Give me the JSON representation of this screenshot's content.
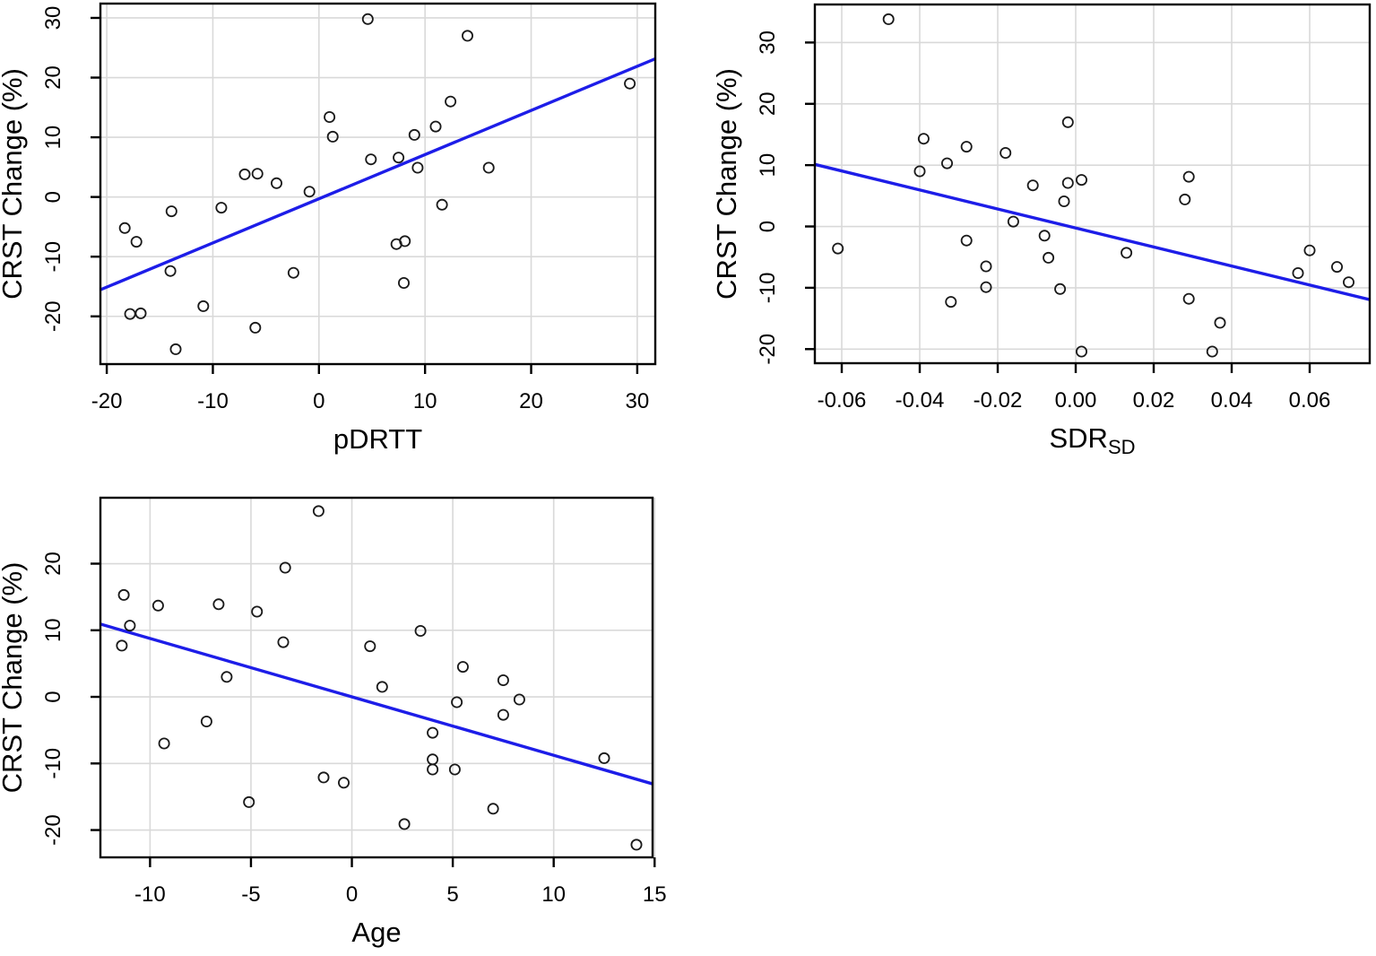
{
  "figure": {
    "background": "#ffffff",
    "line_color": "#1d1de8",
    "grid_color": "#d9d9d9",
    "point_color": "#1a1a1a",
    "axis_color": "#000000"
  },
  "chart_data": [
    {
      "id": "pdrtt",
      "type": "scatter",
      "title": "",
      "xlabel": "pDRTT",
      "xlabel_sub": "",
      "ylabel": "CRST Change (%)",
      "xlim": [
        -20.6,
        31.7
      ],
      "ylim": [
        -28.0,
        32.4
      ],
      "xticks": [
        -20,
        -10,
        0,
        10,
        20,
        30
      ],
      "yticks": [
        -20,
        -10,
        0,
        10,
        20,
        30
      ],
      "xtick_labels": [
        "-20",
        "-10",
        "0",
        "10",
        "20",
        "30"
      ],
      "ytick_labels": [
        "-20",
        "-10",
        "0",
        "10",
        "20",
        "30"
      ],
      "grid": true,
      "legend": "none",
      "regression_line": {
        "slope": 0.74,
        "intercept": -0.3
      },
      "points": [
        [
          4.6,
          29.8
        ],
        [
          14,
          27
        ],
        [
          29.3,
          19
        ],
        [
          12.4,
          16
        ],
        [
          1,
          13.4
        ],
        [
          11,
          11.8
        ],
        [
          9,
          10.4
        ],
        [
          1.3,
          10.1
        ],
        [
          7.5,
          6.6
        ],
        [
          4.9,
          6.3
        ],
        [
          9.3,
          4.9
        ],
        [
          16,
          4.9
        ],
        [
          -7,
          3.8
        ],
        [
          -5.8,
          3.9
        ],
        [
          -4,
          2.3
        ],
        [
          -0.9,
          0.9
        ],
        [
          -9.2,
          -1.8
        ],
        [
          11.6,
          -1.3
        ],
        [
          -13.9,
          -2.4
        ],
        [
          -18.3,
          -5.2
        ],
        [
          -17.2,
          -7.5
        ],
        [
          7.3,
          -7.9
        ],
        [
          8.1,
          -7.4
        ],
        [
          -14,
          -12.4
        ],
        [
          -2.4,
          -12.7
        ],
        [
          8,
          -14.4
        ],
        [
          -10.9,
          -18.3
        ],
        [
          -17.8,
          -19.6
        ],
        [
          -16.8,
          -19.5
        ],
        [
          -6,
          -21.9
        ],
        [
          -13.5,
          -25.5
        ]
      ]
    },
    {
      "id": "sdr",
      "type": "scatter",
      "title": "",
      "xlabel": "SDR",
      "xlabel_sub": "SD",
      "ylabel": "CRST Change (%)",
      "xlim": [
        -0.0669,
        0.0754
      ],
      "ylim": [
        -22.3,
        36.2
      ],
      "xticks": [
        -0.06,
        -0.04,
        -0.02,
        0.0,
        0.02,
        0.04,
        0.06
      ],
      "yticks": [
        -20,
        -10,
        0,
        10,
        20,
        30
      ],
      "xtick_labels": [
        "-0.06",
        "-0.04",
        "-0.02",
        "0.00",
        "0.02",
        "0.04",
        "0.06"
      ],
      "ytick_labels": [
        "-20",
        "-10",
        "0",
        "10",
        "20",
        "30"
      ],
      "grid": true,
      "legend": "none",
      "regression_line": {
        "slope": -155,
        "intercept": -0.25
      },
      "points": [
        [
          -0.048,
          33.8
        ],
        [
          -0.002,
          17
        ],
        [
          -0.039,
          14.3
        ],
        [
          -0.028,
          13
        ],
        [
          -0.018,
          12
        ],
        [
          -0.033,
          10.3
        ],
        [
          -0.04,
          9
        ],
        [
          0.029,
          8.1
        ],
        [
          0.0015,
          7.6
        ],
        [
          -0.002,
          7.1
        ],
        [
          -0.011,
          6.7
        ],
        [
          0.028,
          4.4
        ],
        [
          -0.003,
          4.1
        ],
        [
          -0.016,
          0.8
        ],
        [
          -0.008,
          -1.5
        ],
        [
          -0.028,
          -2.3
        ],
        [
          -0.061,
          -3.6
        ],
        [
          0.013,
          -4.3
        ],
        [
          0.06,
          -3.9
        ],
        [
          -0.007,
          -5.1
        ],
        [
          -0.023,
          -6.5
        ],
        [
          0.067,
          -6.6
        ],
        [
          0.057,
          -7.6
        ],
        [
          0.07,
          -9.1
        ],
        [
          -0.023,
          -9.9
        ],
        [
          -0.004,
          -10.2
        ],
        [
          -0.032,
          -12.3
        ],
        [
          0.029,
          -11.8
        ],
        [
          0.037,
          -15.7
        ],
        [
          0.0015,
          -20.4
        ],
        [
          0.035,
          -20.4
        ]
      ]
    },
    {
      "id": "age",
      "type": "scatter",
      "title": "",
      "xlabel": "Age",
      "xlabel_sub": "",
      "ylabel": "CRST Change (%)",
      "xlim": [
        -12.46,
        14.9
      ],
      "ylim": [
        -24.1,
        29.9
      ],
      "xticks": [
        -10,
        -5,
        0,
        5,
        10,
        15
      ],
      "yticks": [
        -20,
        -10,
        0,
        10,
        20
      ],
      "xtick_labels": [
        "-10",
        "-5",
        "0",
        "5",
        "10",
        "15"
      ],
      "ytick_labels": [
        "-20",
        "-10",
        "0",
        "10",
        "20"
      ],
      "grid": true,
      "legend": "none",
      "regression_line": {
        "slope": -0.877,
        "intercept": 0.0
      },
      "points": [
        [
          -1.65,
          27.9
        ],
        [
          -3.3,
          19.4
        ],
        [
          -11.3,
          15.3
        ],
        [
          -9.6,
          13.7
        ],
        [
          -6.6,
          13.9
        ],
        [
          -4.7,
          12.8
        ],
        [
          -11.0,
          10.7
        ],
        [
          -11.4,
          7.7
        ],
        [
          -3.4,
          8.2
        ],
        [
          0.9,
          7.6
        ],
        [
          3.4,
          9.9
        ],
        [
          -6.2,
          3.0
        ],
        [
          5.5,
          4.5
        ],
        [
          7.5,
          2.5
        ],
        [
          1.5,
          1.5
        ],
        [
          8.3,
          -0.4
        ],
        [
          5.2,
          -0.8
        ],
        [
          7.5,
          -2.7
        ],
        [
          -7.2,
          -3.7
        ],
        [
          4.0,
          -5.4
        ],
        [
          -9.3,
          -7.0
        ],
        [
          12.5,
          -9.2
        ],
        [
          4.0,
          -9.4
        ],
        [
          4.0,
          -10.9
        ],
        [
          5.1,
          -10.9
        ],
        [
          -1.4,
          -12.1
        ],
        [
          -0.4,
          -12.9
        ],
        [
          -5.1,
          -15.8
        ],
        [
          7.0,
          -16.8
        ],
        [
          2.6,
          -19.1
        ],
        [
          14.1,
          -22.2
        ]
      ]
    }
  ]
}
